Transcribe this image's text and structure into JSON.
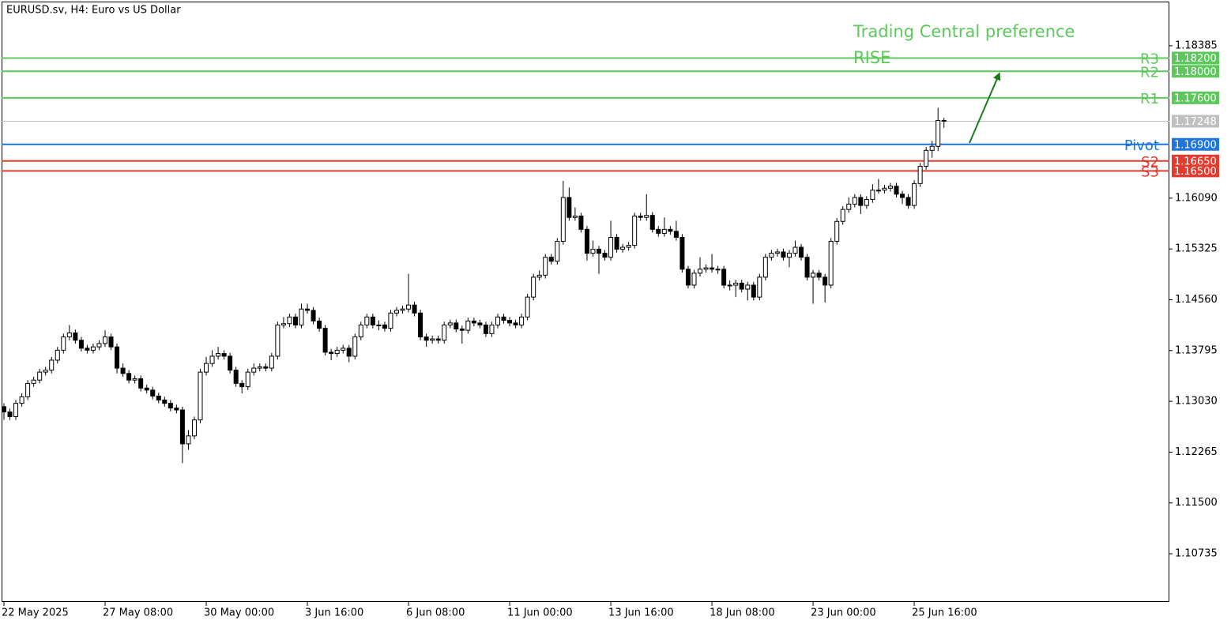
{
  "chart_data": {
    "type": "candlestick",
    "title": "EURUSD.sv, H4:  Euro vs US Dollar",
    "annotation_title": "Trading Central preference",
    "annotation_text": "RISE",
    "up_color": "#ffffff",
    "down_color": "#000000",
    "ylim": [
      1.1001,
      1.1905
    ],
    "yticks": [
      1.18385,
      {
        "value": 1.1609,
        "label": "1.16090"
      },
      1.15325,
      {
        "value": 1.1456,
        "label": "1.14560"
      },
      1.13795,
      {
        "value": 1.1303,
        "label": "1.13030"
      },
      1.12265,
      {
        "value": 1.115,
        "label": "1.11500"
      },
      1.10735
    ],
    "last_price": {
      "value": 1.17248,
      "label": "1.17248",
      "color": "#c0c0c0"
    },
    "levels": [
      {
        "name": "R3",
        "value": 1.182,
        "value_label": "1.18200",
        "color": "#5cc85c"
      },
      {
        "name": "R2",
        "value": 1.18,
        "value_label": "1.18000",
        "color": "#5cc85c"
      },
      {
        "name": "R1",
        "value": 1.176,
        "value_label": "1.17600",
        "color": "#5cc85c"
      },
      {
        "name": "Pivot",
        "value": 1.169,
        "value_label": "1.16900",
        "color": "#1c76db"
      },
      {
        "name": "S2",
        "value": 1.1665,
        "value_label": "1.16650",
        "color": "#e53b2f"
      },
      {
        "name": "S3",
        "value": 1.165,
        "value_label": "1.16500",
        "color": "#e53b2f"
      }
    ],
    "categories": [
      "22 May 2025",
      null,
      null,
      null,
      null,
      null,
      null,
      null,
      null,
      null,
      null,
      null,
      null,
      null,
      null,
      null,
      null,
      "27 May 08:00",
      null,
      null,
      null,
      null,
      null,
      null,
      null,
      null,
      null,
      null,
      null,
      null,
      null,
      null,
      null,
      null,
      "30 May 00:00",
      null,
      null,
      null,
      null,
      null,
      null,
      null,
      null,
      null,
      null,
      null,
      null,
      null,
      null,
      null,
      null,
      "3 Jun 16:00",
      null,
      null,
      null,
      null,
      null,
      null,
      null,
      null,
      null,
      null,
      null,
      null,
      null,
      null,
      null,
      null,
      "6 Jun 08:00",
      null,
      null,
      null,
      null,
      null,
      null,
      null,
      null,
      null,
      null,
      null,
      null,
      null,
      null,
      null,
      null,
      "11 Jun 00:00",
      null,
      null,
      null,
      null,
      null,
      null,
      null,
      null,
      null,
      null,
      null,
      null,
      null,
      null,
      null,
      null,
      "13 Jun 16:00",
      null,
      null,
      null,
      null,
      null,
      null,
      null,
      null,
      null,
      null,
      null,
      null,
      null,
      null,
      null,
      null,
      "18 Jun 08:00",
      null,
      null,
      null,
      null,
      null,
      null,
      null,
      null,
      null,
      null,
      null,
      null,
      null,
      null,
      null,
      null,
      "23 Jun 00:00",
      null,
      null,
      null,
      null,
      null,
      null,
      null,
      null,
      null,
      null,
      null,
      null,
      null,
      null,
      null,
      null,
      "25 Jun 16:00",
      null,
      null,
      null,
      null,
      null
    ],
    "open": [
      1.1295,
      1.1287,
      1.128,
      1.13,
      1.131,
      1.133,
      1.1335,
      1.1347,
      1.135,
      1.1365,
      1.138,
      1.14,
      1.1406,
      1.1395,
      1.1383,
      1.138,
      1.1385,
      1.139,
      1.14,
      1.1385,
      1.1353,
      1.1345,
      1.1335,
      1.1337,
      1.1323,
      1.132,
      1.1311,
      1.1305,
      1.13,
      1.1293,
      1.129,
      1.1239,
      1.1251,
      1.1275,
      1.1347,
      1.136,
      1.1371,
      1.1375,
      1.1371,
      1.135,
      1.133,
      1.1325,
      1.1347,
      1.1353,
      1.1355,
      1.1353,
      1.1371,
      1.1418,
      1.142,
      1.143,
      1.1418,
      1.1442,
      1.144,
      1.1424,
      1.1413,
      1.1377,
      1.1375,
      1.138,
      1.1383,
      1.1371,
      1.14,
      1.1418,
      1.143,
      1.1418,
      1.1418,
      1.1413,
      1.1436,
      1.144,
      1.1442,
      1.1448,
      1.1436,
      1.14,
      1.1395,
      1.1397,
      1.1395,
      1.1418,
      1.1421,
      1.1412,
      1.141,
      1.1424,
      1.1421,
      1.1418,
      1.1405,
      1.1418,
      1.143,
      1.1425,
      1.1421,
      1.1418,
      1.143,
      1.146,
      1.149,
      1.1493,
      1.152,
      1.1514,
      1.1544,
      1.161,
      1.158,
      1.1582,
      1.1562,
      1.1526,
      1.1532,
      1.1526,
      1.152,
      1.155,
      1.1532,
      1.1535,
      1.1538,
      1.1582,
      1.158,
      1.1583,
      1.1562,
      1.1556,
      1.1562,
      1.1559,
      1.155,
      1.1502,
      1.1478,
      1.1496,
      1.1502,
      1.1504,
      1.1502,
      1.1502,
      1.1478,
      1.1478,
      1.1481,
      1.1472,
      1.1478,
      1.146,
      1.149,
      1.152,
      1.1526,
      1.1528,
      1.152,
      1.1526,
      1.1535,
      1.152,
      1.149,
      1.1496,
      1.149,
      1.1478,
      1.1544,
      1.1574,
      1.1592,
      1.16,
      1.161,
      1.1598,
      1.1607,
      1.1621,
      1.1621,
      1.1624,
      1.1627,
      1.1615,
      1.161,
      1.1598,
      1.1631,
      1.1657,
      1.1681,
      1.1687,
      1.1726
    ],
    "high": [
      1.13,
      1.1292,
      1.1305,
      1.1315,
      1.1335,
      1.134,
      1.1352,
      1.1355,
      1.137,
      1.1385,
      1.1405,
      1.1418,
      1.1411,
      1.14,
      1.1388,
      1.139,
      1.1395,
      1.141,
      1.1405,
      1.139,
      1.136,
      1.135,
      1.1342,
      1.1342,
      1.1328,
      1.1325,
      1.1316,
      1.131,
      1.1305,
      1.1298,
      1.1295,
      1.126,
      1.128,
      1.1352,
      1.137,
      1.138,
      1.1385,
      1.138,
      1.1376,
      1.1355,
      1.1335,
      1.1352,
      1.136,
      1.136,
      1.136,
      1.1376,
      1.1423,
      1.143,
      1.1435,
      1.1435,
      1.145,
      1.145,
      1.1445,
      1.1429,
      1.1418,
      1.1382,
      1.1385,
      1.1388,
      1.1388,
      1.1405,
      1.1423,
      1.1435,
      1.1435,
      1.1425,
      1.1423,
      1.1441,
      1.1445,
      1.1447,
      1.1495,
      1.1453,
      1.1441,
      1.1405,
      1.1402,
      1.1402,
      1.1423,
      1.1426,
      1.1426,
      1.1417,
      1.1429,
      1.1429,
      1.1426,
      1.1423,
      1.1423,
      1.1435,
      1.1435,
      1.143,
      1.1426,
      1.1435,
      1.1465,
      1.1495,
      1.15,
      1.1525,
      1.1525,
      1.1549,
      1.1635,
      1.1625,
      1.1595,
      1.1587,
      1.1567,
      1.1545,
      1.1537,
      1.1531,
      1.1575,
      1.1555,
      1.154,
      1.1543,
      1.1587,
      1.1587,
      1.1615,
      1.1588,
      1.1567,
      1.158,
      1.1567,
      1.1575,
      1.1555,
      1.1507,
      1.1501,
      1.152,
      1.1509,
      1.1525,
      1.1507,
      1.1507,
      1.1485,
      1.1486,
      1.1486,
      1.1483,
      1.1483,
      1.1495,
      1.1525,
      1.1531,
      1.1533,
      1.1533,
      1.1531,
      1.1545,
      1.154,
      1.1525,
      1.1501,
      1.1501,
      1.1495,
      1.1549,
      1.1579,
      1.1597,
      1.161,
      1.1615,
      1.1615,
      1.1612,
      1.163,
      1.1638,
      1.1629,
      1.1632,
      1.1632,
      1.162,
      1.1615,
      1.1636,
      1.1662,
      1.1686,
      1.1695,
      1.1745,
      1.173
    ],
    "low": [
      1.1275,
      1.1275,
      1.1275,
      1.1295,
      1.1305,
      1.1325,
      1.133,
      1.1342,
      1.1345,
      1.136,
      1.1375,
      1.1395,
      1.139,
      1.1378,
      1.1375,
      1.1375,
      1.138,
      1.1385,
      1.138,
      1.1345,
      1.134,
      1.133,
      1.133,
      1.1318,
      1.1315,
      1.1306,
      1.13,
      1.1295,
      1.1288,
      1.1285,
      1.121,
      1.123,
      1.1246,
      1.127,
      1.1342,
      1.1355,
      1.1366,
      1.1366,
      1.1345,
      1.1325,
      1.1315,
      1.132,
      1.1342,
      1.1348,
      1.1348,
      1.1348,
      1.1366,
      1.1413,
      1.1415,
      1.1413,
      1.1413,
      1.1435,
      1.1419,
      1.1408,
      1.1372,
      1.1365,
      1.137,
      1.1375,
      1.1362,
      1.1366,
      1.1395,
      1.1413,
      1.1413,
      1.141,
      1.1408,
      1.1408,
      1.1431,
      1.1435,
      1.1437,
      1.1431,
      1.1395,
      1.1385,
      1.139,
      1.139,
      1.139,
      1.1413,
      1.1407,
      1.139,
      1.1405,
      1.1416,
      1.1413,
      1.14,
      1.14,
      1.1413,
      1.142,
      1.1416,
      1.1413,
      1.1413,
      1.1425,
      1.1455,
      1.1485,
      1.1488,
      1.1509,
      1.1509,
      1.1539,
      1.1575,
      1.1575,
      1.1557,
      1.1515,
      1.1521,
      1.1495,
      1.1515,
      1.1515,
      1.1527,
      1.1527,
      1.153,
      1.1533,
      1.1575,
      1.1575,
      1.1557,
      1.1551,
      1.1551,
      1.1554,
      1.1545,
      1.1497,
      1.1473,
      1.1473,
      1.1491,
      1.1497,
      1.1497,
      1.1495,
      1.1473,
      1.147,
      1.146,
      1.1467,
      1.1455,
      1.1455,
      1.1455,
      1.1485,
      1.1515,
      1.1521,
      1.1515,
      1.1505,
      1.1521,
      1.1515,
      1.1485,
      1.145,
      1.1485,
      1.1452,
      1.1473,
      1.1539,
      1.1569,
      1.1587,
      1.1595,
      1.1585,
      1.1593,
      1.1602,
      1.1616,
      1.1616,
      1.1619,
      1.161,
      1.16,
      1.1593,
      1.1593,
      1.1626,
      1.1652,
      1.167,
      1.168,
      1.1715
    ],
    "close": [
      1.1287,
      1.128,
      1.13,
      1.131,
      1.133,
      1.1335,
      1.1347,
      1.135,
      1.1365,
      1.138,
      1.14,
      1.1406,
      1.1395,
      1.1383,
      1.138,
      1.1385,
      1.139,
      1.14,
      1.1385,
      1.1353,
      1.1345,
      1.1335,
      1.1337,
      1.1323,
      1.132,
      1.1311,
      1.1305,
      1.13,
      1.1293,
      1.129,
      1.1239,
      1.1251,
      1.1275,
      1.1347,
      1.136,
      1.1371,
      1.1375,
      1.1371,
      1.135,
      1.133,
      1.1325,
      1.1347,
      1.1353,
      1.1355,
      1.1353,
      1.1371,
      1.1418,
      1.142,
      1.143,
      1.1418,
      1.1442,
      1.144,
      1.1424,
      1.1413,
      1.1377,
      1.1375,
      1.138,
      1.1383,
      1.1371,
      1.14,
      1.1418,
      1.143,
      1.1418,
      1.1418,
      1.1413,
      1.1436,
      1.144,
      1.1442,
      1.1448,
      1.1436,
      1.14,
      1.1395,
      1.1397,
      1.1395,
      1.1418,
      1.1421,
      1.1412,
      1.141,
      1.1424,
      1.1421,
      1.1418,
      1.1405,
      1.1418,
      1.143,
      1.1425,
      1.1421,
      1.1418,
      1.143,
      1.146,
      1.149,
      1.1493,
      1.152,
      1.1514,
      1.1544,
      1.161,
      1.158,
      1.1582,
      1.1562,
      1.1526,
      1.1532,
      1.1526,
      1.152,
      1.155,
      1.1532,
      1.1535,
      1.1538,
      1.1582,
      1.158,
      1.1583,
      1.1562,
      1.1556,
      1.1562,
      1.1559,
      1.155,
      1.1502,
      1.1478,
      1.1496,
      1.1502,
      1.1504,
      1.1502,
      1.1502,
      1.1478,
      1.1478,
      1.1481,
      1.1472,
      1.1478,
      1.146,
      1.149,
      1.152,
      1.1526,
      1.1528,
      1.152,
      1.1526,
      1.1535,
      1.152,
      1.149,
      1.1496,
      1.149,
      1.1478,
      1.1544,
      1.1574,
      1.1592,
      1.16,
      1.161,
      1.1598,
      1.1607,
      1.1621,
      1.1621,
      1.1624,
      1.1627,
      1.1615,
      1.161,
      1.1598,
      1.1631,
      1.1657,
      1.1681,
      1.1687,
      1.1726,
      1.1725
    ]
  }
}
